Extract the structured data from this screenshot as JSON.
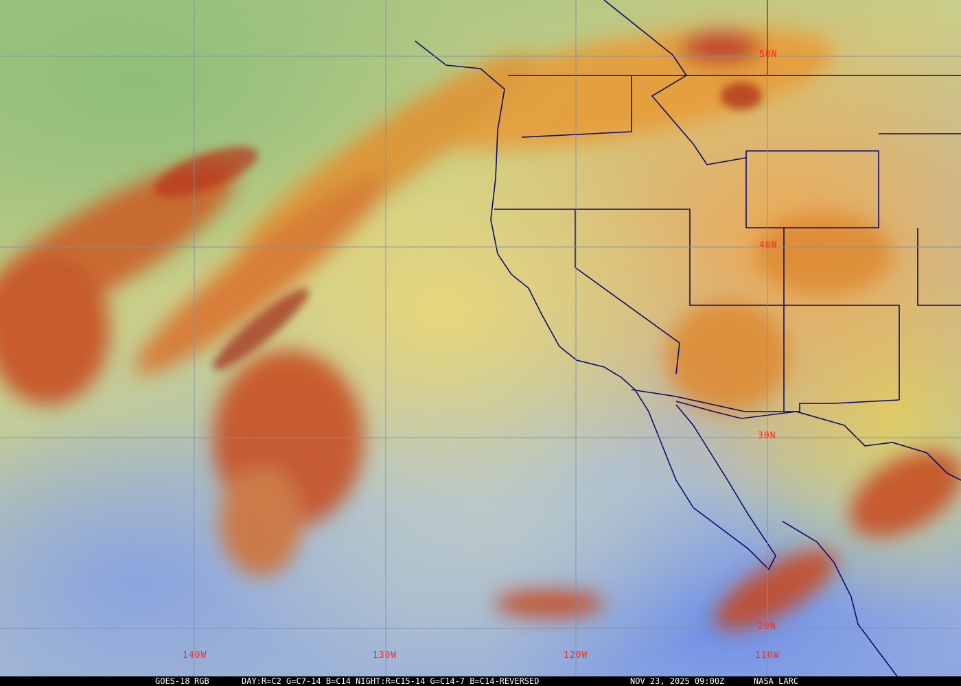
{
  "map": {
    "satellite": "GOES-18",
    "product": "RGB",
    "recipe": "DAY:R=C2 G=C7-14 B=C14 NIGHT:R=C15-14 G=C14-7 B=C14-REVERSED",
    "timestamp": "NOV 23, 2025 09:00Z",
    "credit": "NASA LARC",
    "latitude_labels": [
      "50N",
      "40N",
      "30N",
      "20N"
    ],
    "longitude_labels": [
      "140W",
      "130W",
      "120W",
      "110W"
    ],
    "colors": {
      "grid": "#7f8fb0",
      "borders": "#0a0a6e",
      "labels": "#ff2a1a"
    }
  }
}
